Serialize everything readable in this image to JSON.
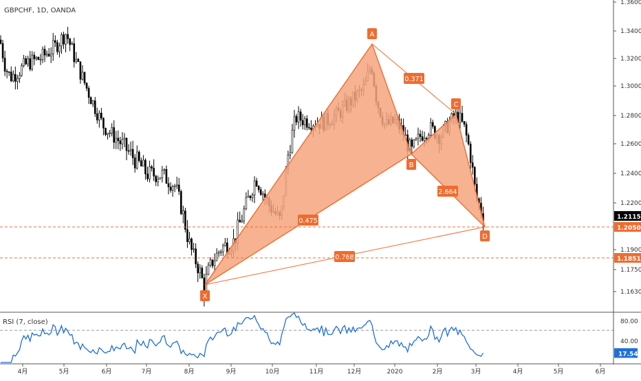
{
  "chart_data": [
    {
      "type": "candlestick",
      "title": "GBPCHF, 1D, OANDA",
      "y_axis_side": "right",
      "ylim": [
        1.152,
        1.362
      ],
      "y_ticks": [
        "1.36000",
        "1.34000",
        "1.32000",
        "1.30000",
        "1.28000",
        "1.26000",
        "1.24000",
        "1.22000",
        "1.19000",
        "1.17500",
        "1.16300"
      ],
      "x_ticks": [
        "4月",
        "5月",
        "6月",
        "7月",
        "8月",
        "9月",
        "10月",
        "11月",
        "12月",
        "2020",
        "2月",
        "3月",
        "4月",
        "5月",
        "6月"
      ],
      "price_labels": [
        {
          "text": "1.21150",
          "value": 1.2115,
          "color": "#000000"
        },
        {
          "text": "1.20500",
          "value": 1.205,
          "color": "#ef6c2f"
        },
        {
          "text": "1.18515",
          "value": 1.18515,
          "color": "#ef6c2f"
        }
      ],
      "horizontal_lines": [
        {
          "value": 1.205,
          "style": "dashed",
          "color": "#ef6c2f"
        },
        {
          "value": 1.18515,
          "style": "dashed",
          "color": "#ef6c2f"
        }
      ],
      "pattern": {
        "color": "#ef6c2f",
        "fill": "#f4a57e",
        "points": [
          {
            "label": "X",
            "value": 1.164
          },
          {
            "label": "A",
            "value": 1.331
          },
          {
            "label": "B",
            "value": 1.253
          },
          {
            "label": "C",
            "value": 1.282
          },
          {
            "label": "D",
            "value": 1.205
          }
        ],
        "ratios": [
          "0.371",
          "0.475",
          "2.664",
          "0.768"
        ]
      },
      "up_color": "#000000",
      "down_color": "#000000"
    },
    {
      "type": "line",
      "title": "RSI (7, close)",
      "ylim": [
        0,
        100
      ],
      "y_ticks": [
        "80.00",
        "40.00"
      ],
      "level_line": 60,
      "last_value_label": "17.54",
      "last_value": 17.54,
      "color": "#1e6fd9"
    }
  ]
}
